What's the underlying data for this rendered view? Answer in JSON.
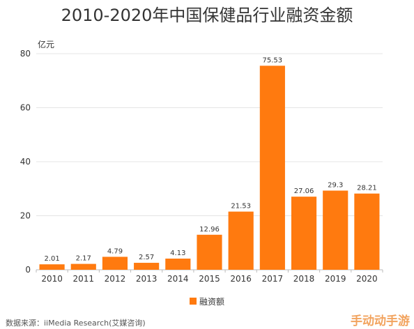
{
  "header": {
    "title": "2010-2020年中国保健品行业融资金额"
  },
  "chart_data": {
    "type": "bar",
    "title": "2010-2020年中国保健品行业融资金额",
    "xlabel": "",
    "ylabel": "亿元",
    "ylim": [
      0,
      80
    ],
    "yticks": [
      0,
      20,
      40,
      60,
      80
    ],
    "grid": true,
    "legend_position": "bottom-center",
    "categories": [
      "2010",
      "2011",
      "2012",
      "2013",
      "2014",
      "2015",
      "2016",
      "2017",
      "2018",
      "2019",
      "2020"
    ],
    "series": [
      {
        "name": "融资额",
        "values": [
          2.01,
          2.17,
          4.79,
          2.57,
          4.13,
          12.96,
          21.53,
          75.53,
          27.06,
          29.3,
          28.21
        ],
        "labels": [
          "2.01",
          "2.17",
          "4.79",
          "2.57",
          "4.13",
          "12.96",
          "21.53",
          "75.53",
          "27.06",
          "29.3",
          "28.21"
        ],
        "color": "#ff7a0f"
      }
    ]
  },
  "footer": {
    "source": "数据来源：iiMedia Research(艾媒咨询)"
  },
  "watermark": {
    "text": "手动动手游"
  }
}
